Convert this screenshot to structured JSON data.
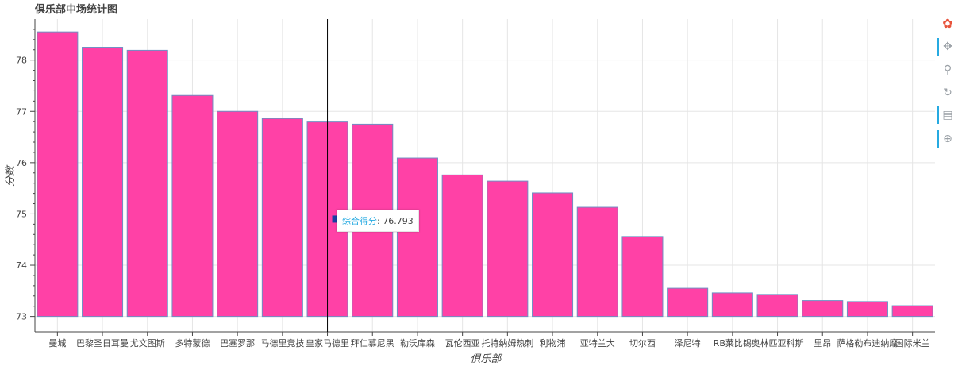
{
  "chart_data": {
    "type": "bar",
    "title": "俱乐部中场统计图",
    "xlabel": "俱乐部",
    "ylabel": "分数",
    "categories": [
      "曼城",
      "巴黎圣日耳曼",
      "尤文图斯",
      "多特蒙德",
      "巴塞罗那",
      "马德里竞技",
      "皇家马德里",
      "拜仁慕尼黑",
      "勒沃库森",
      "瓦伦西亚",
      "托特纳姆热刺",
      "利物浦",
      "亚特兰大",
      "切尔西",
      "泽尼特",
      "RB莱比锡",
      "奥林匹亚科斯",
      "里昂",
      "萨格勒布迪纳摩",
      "国际米兰"
    ],
    "values": [
      78.55,
      78.25,
      78.19,
      77.31,
      77.0,
      76.86,
      76.793,
      76.75,
      76.09,
      75.76,
      75.64,
      75.41,
      75.13,
      74.56,
      73.55,
      73.46,
      73.43,
      73.31,
      73.29,
      73.21
    ],
    "ylim": [
      72.7,
      78.8
    ],
    "yticks": [
      73,
      74,
      75,
      76,
      77,
      78
    ],
    "bar_color": "#ff41a6",
    "bar_edge_color": "#6f8fc3",
    "grid": true,
    "crosshair": {
      "x_category": "皇家马德里",
      "y_value": 75.0
    },
    "tooltip": {
      "label": "综合得分",
      "value": "76.793"
    }
  },
  "toolbar": {
    "tools": [
      {
        "name": "bokeh-logo-icon",
        "glyph": "✿"
      },
      {
        "name": "pan-tool-icon",
        "glyph": "✥"
      },
      {
        "name": "wheel-zoom-tool-icon",
        "glyph": "⚲"
      },
      {
        "name": "reset-tool-icon",
        "glyph": "↻"
      },
      {
        "name": "hover-tool-icon",
        "glyph": "▤"
      },
      {
        "name": "crosshair-tool-icon",
        "glyph": "⊕"
      }
    ]
  }
}
